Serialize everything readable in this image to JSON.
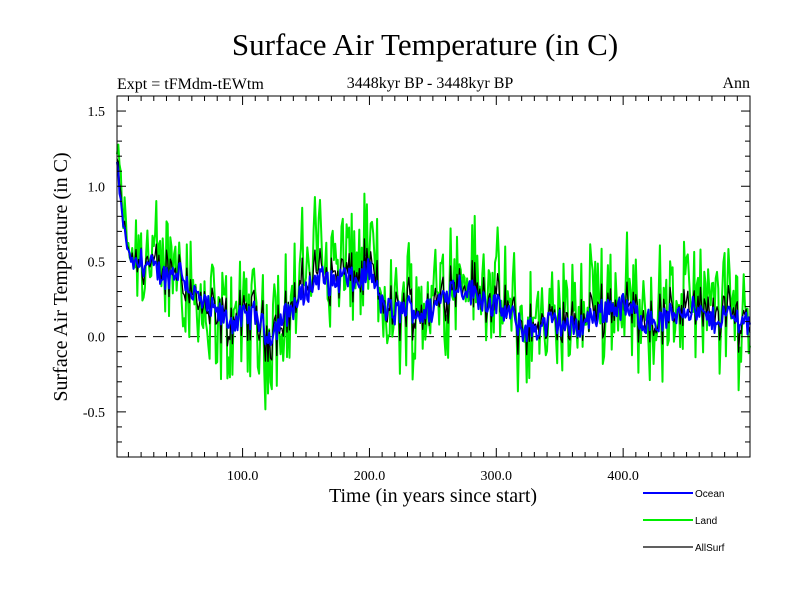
{
  "chart_data": {
    "type": "line",
    "title": "Surface Air Temperature (in C)",
    "subtitle": "3448kyr BP - 3448kyr BP",
    "left_label": "Expt = tFMdm-tEWtm",
    "right_label": "Ann",
    "xlabel": "Time (in years since start)",
    "ylabel": "Surface Air Temperature (in C)",
    "xlim": [
      1,
      500
    ],
    "ylim": [
      -0.8,
      1.6
    ],
    "xticks": [
      100,
      200,
      300,
      400
    ],
    "xtick_labels": [
      "100.0",
      "200.0",
      "300.0",
      "400.0"
    ],
    "yticks": [
      -0.5,
      0.0,
      0.5,
      1.0,
      1.5
    ],
    "ytick_labels": [
      "-0.5",
      "0.0",
      "0.5",
      "1.0",
      "1.5"
    ],
    "reference_line": 0.0,
    "anchors": {
      "x": [
        1,
        5,
        10,
        15,
        20,
        30,
        40,
        50,
        60,
        70,
        80,
        90,
        100,
        110,
        120,
        130,
        140,
        150,
        160,
        170,
        180,
        190,
        200,
        210,
        220,
        230,
        240,
        250,
        260,
        270,
        280,
        290,
        300,
        310,
        320,
        330,
        340,
        350,
        360,
        370,
        380,
        390,
        400,
        410,
        420,
        430,
        440,
        450,
        460,
        470,
        480,
        490,
        500
      ],
      "ocean": [
        1.15,
        0.8,
        0.55,
        0.45,
        0.5,
        0.45,
        0.4,
        0.45,
        0.3,
        0.2,
        0.15,
        0.1,
        0.12,
        0.15,
        0.0,
        0.1,
        0.2,
        0.3,
        0.4,
        0.35,
        0.4,
        0.35,
        0.45,
        0.2,
        0.15,
        0.2,
        0.15,
        0.18,
        0.3,
        0.35,
        0.3,
        0.25,
        0.2,
        0.15,
        0.05,
        0.05,
        0.08,
        0.1,
        0.05,
        0.1,
        0.15,
        0.2,
        0.2,
        0.15,
        0.1,
        0.1,
        0.15,
        0.2,
        0.15,
        0.1,
        0.15,
        0.12,
        0.1
      ],
      "land": [
        1.25,
        0.9,
        0.6,
        0.5,
        0.6,
        0.45,
        0.45,
        0.55,
        0.3,
        0.15,
        0.1,
        0.05,
        0.15,
        0.2,
        -0.05,
        0.15,
        0.25,
        0.45,
        0.6,
        0.45,
        0.5,
        0.45,
        0.55,
        0.25,
        0.15,
        0.25,
        0.2,
        0.2,
        0.35,
        0.45,
        0.4,
        0.35,
        0.25,
        0.2,
        0.05,
        0.05,
        0.1,
        0.15,
        0.05,
        0.15,
        0.25,
        0.3,
        0.3,
        0.2,
        0.15,
        0.15,
        0.2,
        0.3,
        0.2,
        0.15,
        0.2,
        0.15,
        0.15
      ]
    },
    "series": [
      {
        "name": "Ocean",
        "color": "#0000ff",
        "noise": 0.09
      },
      {
        "name": "Land",
        "color": "#00ee00",
        "noise": 0.26
      },
      {
        "name": "AllSurf",
        "color": "#000000",
        "noise": 0.14
      }
    ],
    "legend_placement": "bottom-right"
  }
}
